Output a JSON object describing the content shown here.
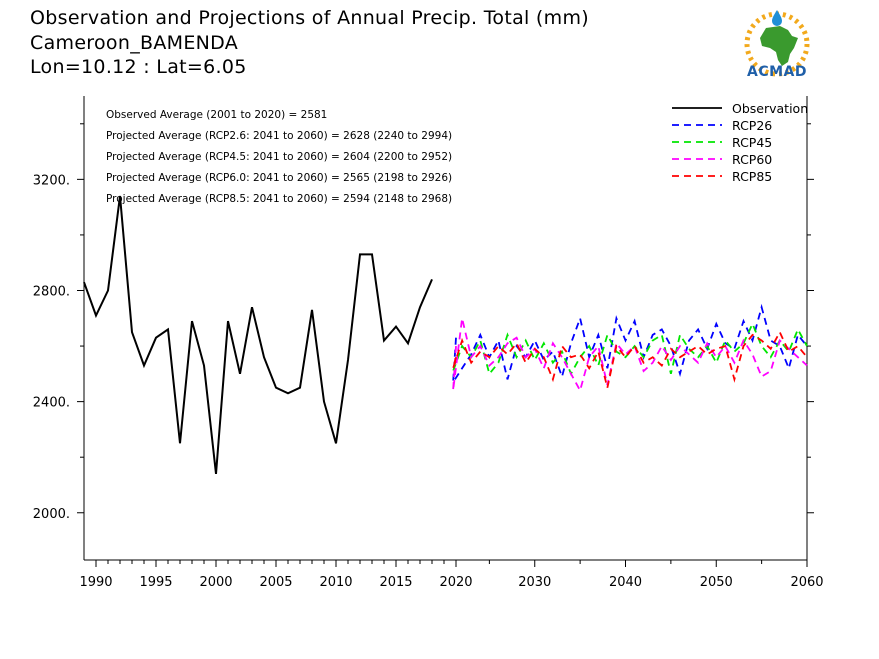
{
  "title": {
    "line1": "Observation and Projections of Annual Precip. Total (mm)",
    "line2": "Cameroon_BAMENDA",
    "line3": "Lon=10.12 : Lat=6.05"
  },
  "logo": {
    "text": "ACMAD"
  },
  "colors": {
    "observation": "#000000",
    "rcp26": "#0000ff",
    "rcp45": "#00e600",
    "rcp60": "#ff00ff",
    "rcp85": "#ff0000"
  },
  "chart_data": {
    "type": "line",
    "xlim": [
      1989,
      2060
    ],
    "ylim": [
      1830,
      3500
    ],
    "y_ticks": [
      2000,
      2400,
      2800,
      3200
    ],
    "y_tick_labels": [
      "2000.",
      "2400.",
      "2800.",
      "3200."
    ],
    "x_ticks": [
      1990,
      1995,
      2000,
      2005,
      2010,
      2015,
      2020,
      2030,
      2040,
      2050,
      2060
    ],
    "x_tick_labels": [
      "1990",
      "1995",
      "2000",
      "2005",
      "2010",
      "2015",
      "2020",
      "2030",
      "2040",
      "2050",
      "2060"
    ],
    "annotations": [
      "Observed Average (2001 to 2020) = 2581",
      "Projected Average (RCP2.6: 2041 to 2060) = 2628 (2240 to 2994)",
      "Projected Average (RCP4.5: 2041 to 2060) = 2604 (2200 to 2952)",
      "Projected Average (RCP6.0: 2041 to 2060) = 2565 (2198 to 2926)",
      "Projected Average (RCP8.5: 2041 to 2060) = 2594 (2148 to 2968)"
    ],
    "legend_position": "top-right",
    "series": [
      {
        "name": "Observation",
        "key": "observation",
        "style": "solid",
        "x": [
          1989,
          1990,
          1991,
          1992,
          1993,
          1994,
          1995,
          1996,
          1997,
          1998,
          1999,
          2000,
          2001,
          2002,
          2003,
          2004,
          2005,
          2006,
          2007,
          2008,
          2009,
          2010,
          2011,
          2012,
          2013,
          2014,
          2015,
          2016,
          2017,
          2018,
          2019
        ],
        "values": [
          2830,
          2710,
          2800,
          3140,
          2650,
          2530,
          2630,
          2660,
          2250,
          2690,
          2530,
          2140,
          2690,
          2500,
          2740,
          2560,
          2450,
          2430,
          2450,
          2730,
          2400,
          2250,
          2550,
          2930,
          2930,
          2620,
          2670,
          2610,
          2740,
          2840,
          null
        ]
      },
      {
        "name": "RCP26",
        "key": "rcp26",
        "style": "dashed",
        "x": [
          2020,
          2021,
          2022,
          2023,
          2024,
          2025,
          2026,
          2027,
          2028,
          2029,
          2030,
          2031,
          2032,
          2033,
          2034,
          2035,
          2036,
          2037,
          2038,
          2039,
          2040,
          2041,
          2042,
          2043,
          2044,
          2045,
          2046,
          2047,
          2048,
          2049,
          2050,
          2051,
          2052,
          2053,
          2054,
          2055,
          2056,
          2057,
          2058,
          2059,
          2060
        ],
        "values": [
          2630,
          2470,
          2520,
          2570,
          2640,
          2560,
          2620,
          2480,
          2600,
          2560,
          2620,
          2550,
          2580,
          2490,
          2610,
          2700,
          2560,
          2640,
          2520,
          2700,
          2620,
          2690,
          2560,
          2640,
          2660,
          2600,
          2500,
          2620,
          2660,
          2590,
          2680,
          2610,
          2590,
          2690,
          2620,
          2740,
          2620,
          2600,
          2520,
          2640,
          2600
        ]
      },
      {
        "name": "RCP45",
        "key": "rcp45",
        "style": "dashed",
        "x": [
          2020,
          2021,
          2022,
          2023,
          2024,
          2025,
          2026,
          2027,
          2028,
          2029,
          2030,
          2031,
          2032,
          2033,
          2034,
          2035,
          2036,
          2037,
          2038,
          2039,
          2040,
          2041,
          2042,
          2043,
          2044,
          2045,
          2046,
          2047,
          2048,
          2049,
          2050,
          2051,
          2052,
          2053,
          2054,
          2055,
          2056,
          2057,
          2058,
          2059,
          2060
        ],
        "values": [
          2550,
          2510,
          2600,
          2560,
          2620,
          2500,
          2540,
          2640,
          2560,
          2620,
          2550,
          2610,
          2540,
          2580,
          2500,
          2560,
          2600,
          2530,
          2640,
          2580,
          2560,
          2600,
          2560,
          2620,
          2640,
          2500,
          2640,
          2590,
          2560,
          2600,
          2540,
          2620,
          2580,
          2610,
          2680,
          2600,
          2560,
          2620,
          2580,
          2660,
          2600
        ]
      },
      {
        "name": "RCP60",
        "key": "rcp60",
        "style": "dashed",
        "x": [
          2020,
          2021,
          2022,
          2023,
          2024,
          2025,
          2026,
          2027,
          2028,
          2029,
          2030,
          2031,
          2032,
          2033,
          2034,
          2035,
          2036,
          2037,
          2038,
          2039,
          2040,
          2041,
          2042,
          2043,
          2044,
          2045,
          2046,
          2047,
          2048,
          2049,
          2050,
          2051,
          2052,
          2053,
          2054,
          2055,
          2056,
          2057,
          2058,
          2059,
          2060
        ],
        "values": [
          2600,
          2440,
          2700,
          2560,
          2600,
          2530,
          2560,
          2610,
          2630,
          2560,
          2590,
          2520,
          2610,
          2560,
          2500,
          2440,
          2560,
          2600,
          2460,
          2610,
          2570,
          2600,
          2510,
          2540,
          2600,
          2550,
          2600,
          2570,
          2540,
          2610,
          2560,
          2600,
          2540,
          2620,
          2570,
          2490,
          2510,
          2620,
          2590,
          2560,
          2530
        ]
      },
      {
        "name": "RCP85",
        "key": "rcp85",
        "style": "dashed",
        "x": [
          2020,
          2021,
          2022,
          2023,
          2024,
          2025,
          2026,
          2027,
          2028,
          2029,
          2030,
          2031,
          2032,
          2033,
          2034,
          2035,
          2036,
          2037,
          2038,
          2039,
          2040,
          2041,
          2042,
          2043,
          2044,
          2045,
          2046,
          2047,
          2048,
          2049,
          2050,
          2051,
          2052,
          2053,
          2054,
          2055,
          2056,
          2057,
          2058,
          2059,
          2060
        ],
        "values": [
          2560,
          2520,
          2620,
          2540,
          2580,
          2560,
          2600,
          2570,
          2610,
          2540,
          2590,
          2560,
          2480,
          2600,
          2560,
          2570,
          2520,
          2580,
          2450,
          2600,
          2560,
          2600,
          2540,
          2560,
          2530,
          2590,
          2560,
          2580,
          2600,
          2570,
          2590,
          2600,
          2480,
          2600,
          2640,
          2620,
          2590,
          2650,
          2580,
          2600,
          2560
        ]
      }
    ]
  }
}
